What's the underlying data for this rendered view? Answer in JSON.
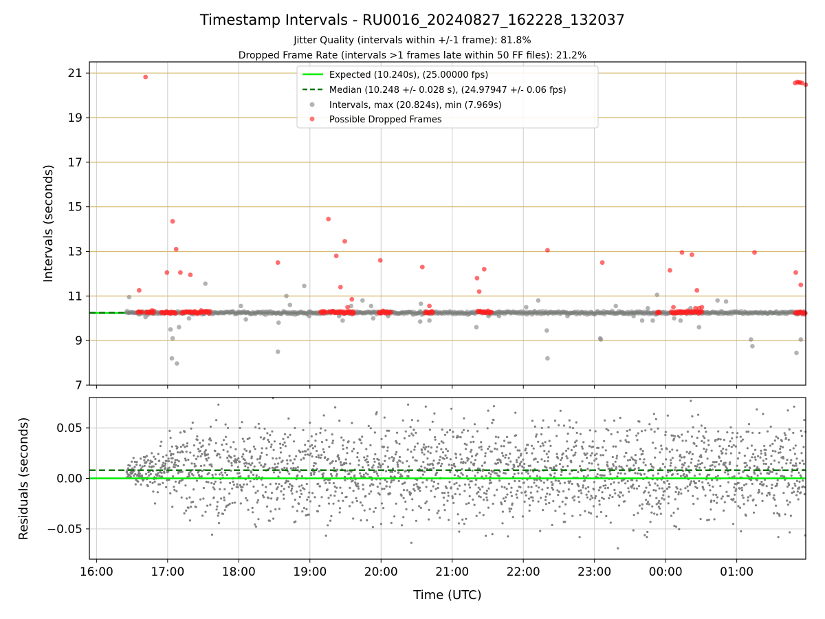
{
  "title": "Timestamp Intervals - RU0016_20240827_162228_132037",
  "subtitle_1": "Jitter Quality (intervals within +/-1 frame): 81.8%",
  "subtitle_2": "Dropped Frame Rate (intervals >1 frames late within 50 FF files): 21.2%",
  "colors": {
    "expected": "#00ee00",
    "median": "#007700",
    "intervals": "#808080",
    "dropped": "#ff2020",
    "grid_h_top": "#d4b66a",
    "grid": "#cccccc"
  },
  "chart_data": [
    {
      "type": "scatter",
      "panel": "intervals",
      "ylabel": "Intervals (seconds)",
      "ylim": [
        7,
        21.5
      ],
      "yticks": [
        "7",
        "9",
        "11",
        "13",
        "15",
        "17",
        "19",
        "21"
      ],
      "ytick_values": [
        7,
        9,
        11,
        13,
        15,
        17,
        19,
        21
      ],
      "xlim_hours": [
        15.9,
        25.97
      ],
      "x_tick_hours": [
        16,
        17,
        18,
        19,
        20,
        21,
        22,
        23,
        24,
        25
      ],
      "grid": true,
      "legend_position": "top-center",
      "legend": {
        "expected": "Expected (10.240s), (25.00000 fps)",
        "median": "Median (10.248 +/- 0.028 s), (24.97947 +/- 0.06 fps)",
        "intervals": "Intervals, max (20.824s), min (7.969s)",
        "dropped": "Possible Dropped Frames"
      },
      "expected_value": 10.24,
      "median_value": 10.248,
      "series_gray": {
        "hours": [
          16.46,
          16.69,
          16.7,
          16.99,
          17.04,
          17.06,
          17.07,
          17.13,
          17.16,
          17.3,
          17.53,
          18.03,
          18.1,
          18.55,
          18.56,
          18.67,
          18.72,
          18.92,
          18.99,
          19.41,
          19.46,
          19.58,
          19.74,
          19.86,
          19.89,
          20.1,
          20.55,
          20.56,
          20.68,
          21.34,
          21.51,
          21.66,
          22.04,
          22.21,
          22.33,
          22.34,
          22.62,
          23.08,
          23.09,
          23.3,
          23.4,
          23.55,
          23.67,
          23.75,
          23.82,
          23.88,
          24.12,
          24.21,
          24.35,
          24.47,
          24.73,
          24.85,
          25.2,
          25.22,
          25.84,
          25.9
        ],
        "values": [
          10.95,
          10.05,
          10.3,
          10.3,
          9.5,
          8.2,
          9.1,
          7.97,
          9.6,
          10.0,
          11.55,
          10.55,
          9.95,
          8.5,
          9.8,
          11.0,
          10.6,
          11.45,
          10.1,
          10.1,
          9.9,
          10.55,
          10.8,
          10.55,
          10.0,
          10.1,
          9.85,
          10.65,
          9.9,
          9.6,
          10.1,
          10.1,
          10.5,
          10.8,
          9.45,
          8.2,
          10.1,
          9.1,
          9.05,
          10.55,
          10.2,
          10.1,
          9.9,
          10.45,
          9.9,
          11.05,
          10.0,
          9.9,
          10.45,
          9.6,
          10.8,
          10.75,
          9.05,
          8.75,
          8.45,
          9.05
        ]
      },
      "series_dropped": {
        "hours": [
          16.6,
          16.69,
          16.78,
          16.99,
          17.07,
          17.12,
          17.18,
          17.32,
          17.47,
          18.55,
          19.26,
          19.37,
          19.43,
          19.49,
          19.53,
          19.59,
          19.99,
          20.58,
          20.68,
          21.35,
          21.38,
          21.45,
          22.34,
          23.11,
          24.06,
          24.11,
          24.23,
          24.37,
          24.42,
          24.44,
          24.47,
          24.51,
          25.25,
          25.82,
          25.85,
          25.87,
          25.89,
          25.92,
          25.97,
          25.83,
          25.9
        ],
        "values": [
          11.25,
          20.82,
          10.35,
          12.05,
          14.35,
          13.1,
          12.05,
          11.95,
          10.35,
          12.5,
          14.45,
          12.8,
          11.4,
          13.45,
          10.5,
          10.85,
          12.6,
          12.3,
          10.55,
          11.8,
          11.2,
          12.2,
          13.05,
          12.5,
          12.15,
          10.5,
          12.95,
          12.85,
          10.45,
          11.25,
          10.45,
          10.5,
          12.95,
          20.55,
          20.6,
          20.58,
          20.58,
          20.55,
          20.48,
          12.05,
          11.5
        ]
      },
      "dropped_band_hours": [
        [
          16.58,
          16.64
        ],
        [
          16.7,
          16.82
        ],
        [
          16.91,
          17.12
        ],
        [
          17.2,
          17.49
        ],
        [
          17.5,
          17.6
        ],
        [
          19.15,
          19.23
        ],
        [
          19.27,
          19.63
        ],
        [
          19.97,
          20.15
        ],
        [
          20.62,
          20.73
        ],
        [
          21.36,
          21.56
        ],
        [
          23.88,
          23.92
        ],
        [
          24.08,
          24.52
        ],
        [
          25.82,
          25.97
        ]
      ]
    },
    {
      "type": "scatter",
      "panel": "residuals",
      "ylabel": "Residuals (seconds)",
      "xlabel": "Time (UTC)",
      "ylim": [
        -0.08,
        0.08
      ],
      "yticks": [
        "−0.05",
        "0.00",
        "0.05"
      ],
      "ytick_values": [
        -0.05,
        0,
        0.05
      ],
      "xlim_hours": [
        15.9,
        25.97
      ],
      "x_tick_hours": [
        16,
        17,
        18,
        19,
        20,
        21,
        22,
        23,
        24,
        25
      ],
      "xticks": [
        "16:00",
        "17:00",
        "18:00",
        "19:00",
        "20:00",
        "21:00",
        "22:00",
        "23:00",
        "00:00",
        "01:00"
      ],
      "grid": true,
      "expected_value": 0.0,
      "median_value": 0.008,
      "start_hour": 16.42,
      "end_hour": 25.97,
      "approx_sd_start": 0.005,
      "approx_sd_end": 0.035
    }
  ]
}
